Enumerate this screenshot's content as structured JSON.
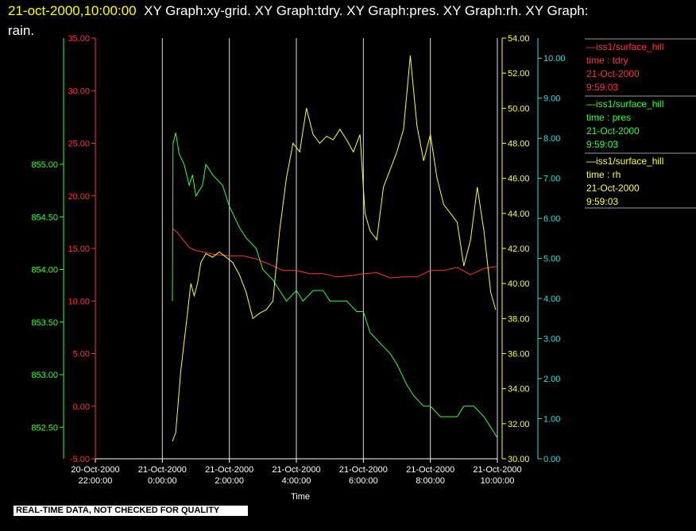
{
  "header": {
    "timestamp": "21-oct-2000,10:00:00",
    "line1": "XY Graph:xy-grid.  XY Graph:tdry.  XY Graph:pres.  XY Graph:rh.  XY Graph:",
    "line2": "rain."
  },
  "footer": {
    "qc_notice": "REAL-TIME DATA, NOT CHECKED FOR QUALITY"
  },
  "legend": [
    {
      "station": "—iss1/surface_hill",
      "var": "time : tdry",
      "date": "21-Oct-2000",
      "time": "9:59:03",
      "color": "#ff3333"
    },
    {
      "station": "—iss1/surface_hill",
      "var": "time : pres",
      "date": "21-Oct-2000",
      "time": "9:59:03",
      "color": "#33ff33"
    },
    {
      "station": "—iss1/surface_hill",
      "var": "time : rh",
      "date": "21-Oct-2000",
      "time": "9:59:03",
      "color": "#ffff33"
    }
  ],
  "chart_data": {
    "type": "line",
    "xlabel": "Time",
    "x_ticks": [
      {
        "date": "20-Oct-2000",
        "time": "22:00:00",
        "hour": -2
      },
      {
        "date": "21-Oct-2000",
        "time": "0:00:00",
        "hour": 0
      },
      {
        "date": "21-Oct-2000",
        "time": "2:00:00",
        "hour": 2
      },
      {
        "date": "21-Oct-2000",
        "time": "4:00:00",
        "hour": 4
      },
      {
        "date": "21-Oct-2000",
        "time": "6:00:00",
        "hour": 6
      },
      {
        "date": "21-Oct-2000",
        "time": "8:00:00",
        "hour": 8
      },
      {
        "date": "21-Oct-2000",
        "time": "10:00:00",
        "hour": 10
      }
    ],
    "xlim": [
      -2,
      10
    ],
    "grid_x": true,
    "axes": [
      {
        "id": "pres",
        "side": "left-outer",
        "color": "#33ff33",
        "ylim": [
          852.2,
          856.2
        ],
        "ticks": [
          "852.50",
          "853.00",
          "853.50",
          "854.00",
          "854.50",
          "855.00"
        ],
        "tick_values": [
          852.5,
          853,
          853.5,
          854,
          854.5,
          855
        ]
      },
      {
        "id": "tdry",
        "side": "left-inner",
        "color": "#ff3333",
        "ylim": [
          -5,
          35
        ],
        "ticks": [
          "-5.00",
          "0.00",
          "5.00",
          "10.00",
          "15.00",
          "20.00",
          "25.00",
          "30.00",
          "35.00"
        ],
        "tick_values": [
          -5,
          0,
          5,
          10,
          15,
          20,
          25,
          30,
          35
        ]
      },
      {
        "id": "rh",
        "side": "right-inner",
        "color": "#ffff33",
        "ylim": [
          30,
          54
        ],
        "ticks": [
          "30.00",
          "32.00",
          "34.00",
          "36.00",
          "38.00",
          "40.00",
          "42.00",
          "44.00",
          "46.00",
          "48.00",
          "50.00",
          "52.00",
          "54.00"
        ],
        "tick_values": [
          30,
          32,
          34,
          36,
          38,
          40,
          42,
          44,
          46,
          48,
          50,
          52,
          54
        ]
      },
      {
        "id": "rain",
        "side": "right-outer",
        "color": "#33dddd",
        "ylim": [
          0,
          10.5
        ],
        "ticks": [
          "0.00",
          "1.00",
          "2.00",
          "3.00",
          "4.00",
          "5.00",
          "6.00",
          "7.00",
          "8.00",
          "9.00",
          "10.00"
        ],
        "tick_values": [
          0,
          1,
          2,
          3,
          4,
          5,
          6,
          7,
          8,
          9,
          10
        ]
      }
    ],
    "series": [
      {
        "name": "tdry",
        "axis": "tdry",
        "color": "#ff3333",
        "x": [
          0.3,
          0.45,
          0.6,
          0.8,
          1.0,
          1.3,
          1.6,
          2.0,
          2.4,
          2.8,
          3.2,
          3.6,
          4.0,
          4.4,
          4.8,
          5.2,
          5.6,
          6.0,
          6.4,
          6.8,
          7.2,
          7.6,
          8.0,
          8.4,
          8.8,
          9.2,
          9.6,
          10.0
        ],
        "y": [
          16.9,
          16.5,
          15.9,
          15.1,
          14.8,
          14.6,
          14.4,
          14.3,
          14.3,
          14.0,
          13.5,
          12.9,
          12.9,
          12.6,
          12.6,
          12.3,
          12.4,
          12.6,
          12.7,
          12.2,
          12.3,
          12.3,
          12.9,
          12.9,
          13.2,
          12.5,
          13.1,
          13.3
        ]
      },
      {
        "name": "pres",
        "axis": "pres",
        "color": "#33ff33",
        "x": [
          0.3,
          0.32,
          0.4,
          0.5,
          0.65,
          0.8,
          0.9,
          1.0,
          1.2,
          1.3,
          1.5,
          1.8,
          2.0,
          2.3,
          2.5,
          2.8,
          3.0,
          3.3,
          3.5,
          3.7,
          4.0,
          4.2,
          4.5,
          4.8,
          5.0,
          5.3,
          5.5,
          5.8,
          6.0,
          6.2,
          6.5,
          6.8,
          7.0,
          7.3,
          7.5,
          7.8,
          8.0,
          8.3,
          8.5,
          8.8,
          9.0,
          9.3,
          9.6,
          9.8,
          10.0
        ],
        "y": [
          853.7,
          855.2,
          855.3,
          855.1,
          855.0,
          854.8,
          854.9,
          854.7,
          854.8,
          855.0,
          854.9,
          854.8,
          854.6,
          854.4,
          854.3,
          854.2,
          854.0,
          853.9,
          853.8,
          853.7,
          853.8,
          853.7,
          853.8,
          853.8,
          853.7,
          853.7,
          853.7,
          853.6,
          853.6,
          853.4,
          853.3,
          853.2,
          853.1,
          852.9,
          852.8,
          852.7,
          852.7,
          852.6,
          852.6,
          852.6,
          852.7,
          852.7,
          852.6,
          852.5,
          852.4
        ]
      },
      {
        "name": "rh",
        "axis": "rh",
        "color": "#ffff33",
        "x": [
          0.3,
          0.4,
          0.55,
          0.7,
          0.85,
          0.95,
          1.05,
          1.15,
          1.3,
          1.5,
          1.7,
          1.9,
          2.1,
          2.3,
          2.5,
          2.7,
          2.9,
          3.1,
          3.3,
          3.5,
          3.7,
          3.9,
          4.1,
          4.3,
          4.5,
          4.7,
          4.9,
          5.1,
          5.3,
          5.5,
          5.7,
          5.9,
          6.05,
          6.2,
          6.4,
          6.6,
          6.8,
          7.0,
          7.2,
          7.4,
          7.6,
          7.8,
          8.0,
          8.2,
          8.4,
          8.6,
          8.8,
          9.0,
          9.2,
          9.4,
          9.6,
          9.8,
          9.95
        ],
        "y": [
          31.0,
          31.5,
          35.0,
          37.5,
          40.0,
          39.3,
          40.0,
          41.2,
          41.7,
          41.5,
          41.8,
          41.5,
          41.2,
          40.5,
          39.5,
          38.0,
          38.3,
          38.5,
          39.0,
          43.0,
          46.0,
          48.0,
          47.5,
          50.0,
          48.5,
          48.0,
          48.4,
          48.2,
          48.8,
          48.2,
          47.5,
          48.5,
          44.0,
          43.0,
          42.5,
          45.5,
          46.5,
          47.5,
          48.8,
          53.0,
          49.0,
          47.0,
          48.5,
          46.0,
          44.5,
          44.0,
          43.5,
          41.0,
          42.5,
          45.5,
          43.0,
          39.5,
          38.5
        ]
      }
    ]
  }
}
